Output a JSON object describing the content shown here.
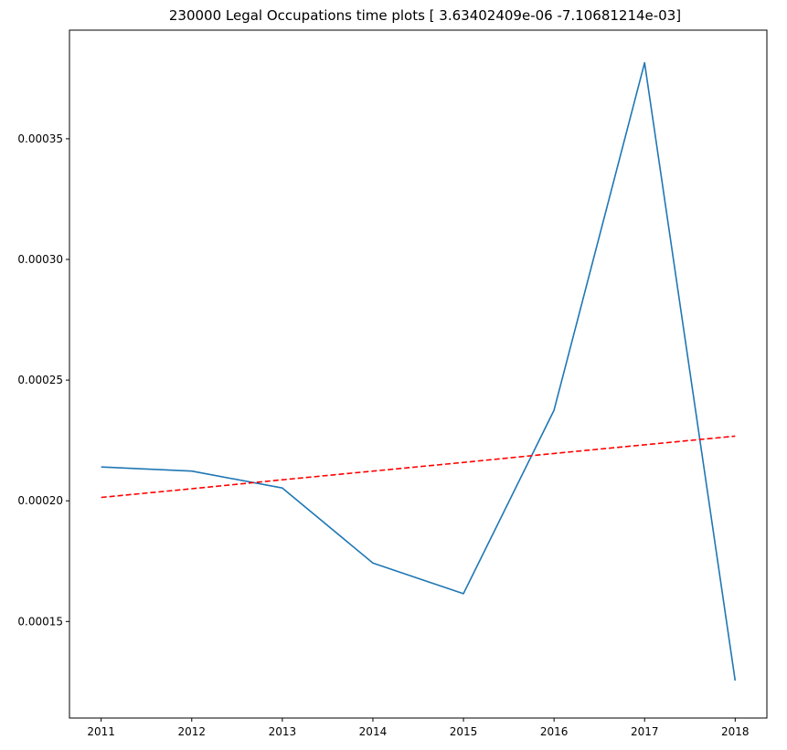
{
  "chart_data": {
    "type": "line",
    "title": "230000 Legal Occupations time plots [ 3.63402409e-06 -7.10681214e-03]",
    "xlabel": "",
    "ylabel": "",
    "x": [
      2011,
      2012,
      2013,
      2014,
      2015,
      2016,
      2017,
      2018
    ],
    "xlim": [
      2010.65,
      2018.35
    ],
    "ylim": [
      0.00011,
      0.000395
    ],
    "xticks": [
      "2011",
      "2012",
      "2013",
      "2014",
      "2015",
      "2016",
      "2017",
      "2018"
    ],
    "yticks": [
      {
        "value": 0.00015,
        "label": "0.00015"
      },
      {
        "value": 0.0002,
        "label": "0.00020"
      },
      {
        "value": 0.00025,
        "label": "0.00025"
      },
      {
        "value": 0.0003,
        "label": "0.00030"
      },
      {
        "value": 0.00035,
        "label": "0.00035"
      }
    ],
    "grid": false,
    "series": [
      {
        "values": [
          0.000214,
          0.0002123,
          0.0002053,
          0.0001742,
          0.0001615,
          0.0002375,
          0.0003815,
          0.0001255
        ],
        "color": "#1f77b4",
        "style": "solid"
      },
      {
        "values": [
          0.0002014,
          0.000205,
          0.0002087,
          0.0002123,
          0.0002159,
          0.0002196,
          0.0002232,
          0.0002268
        ],
        "color": "#ff0000",
        "style": "dashed"
      }
    ]
  }
}
